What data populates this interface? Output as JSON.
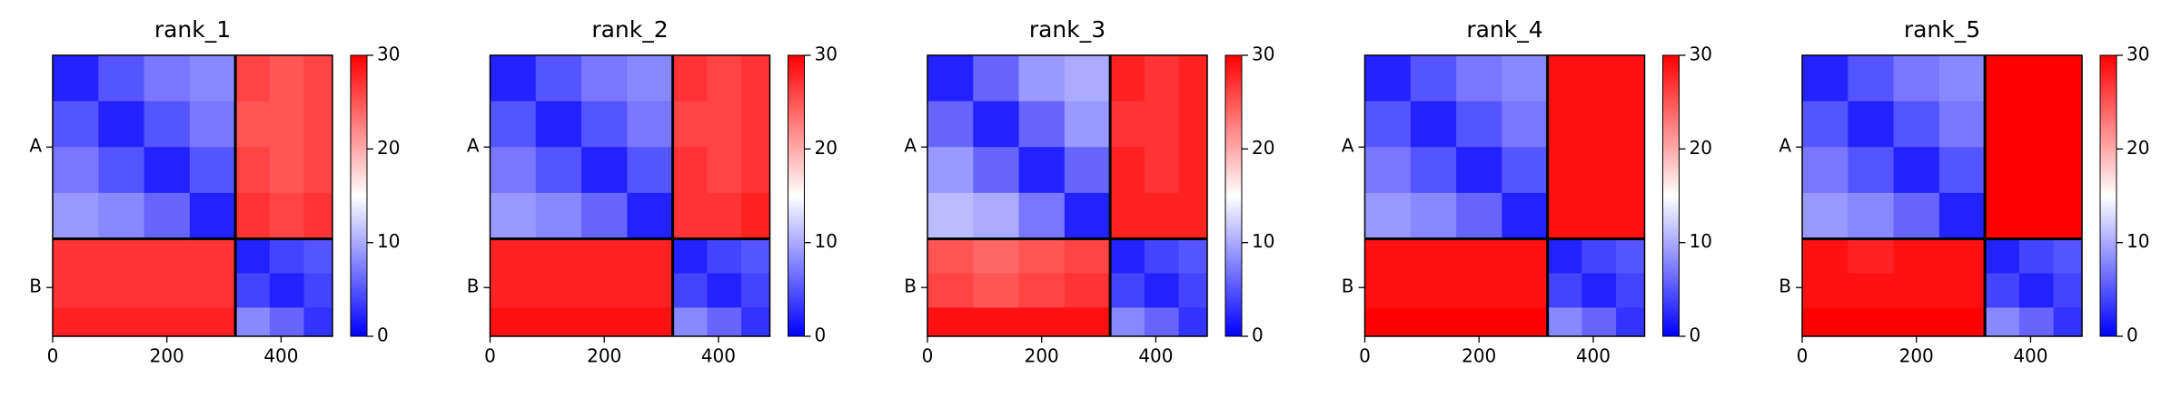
{
  "chart_data": [
    {
      "type": "heatmap",
      "title": "rank_1",
      "bins": [
        0,
        80,
        160,
        240,
        320,
        380,
        440,
        490
      ],
      "xlim": [
        0,
        490
      ],
      "ylim": [
        490,
        0
      ],
      "xticks": [
        0,
        200,
        400
      ],
      "yticks": [
        {
          "value": 160,
          "label": "A"
        },
        {
          "value": 405,
          "label": "B"
        }
      ],
      "chain_breaks": [
        320
      ],
      "z": [
        [
          2,
          5,
          7,
          8,
          26,
          25,
          26
        ],
        [
          5,
          2,
          5,
          7,
          25,
          25,
          26
        ],
        [
          7,
          5,
          2,
          5,
          26,
          25,
          26
        ],
        [
          9,
          8,
          6,
          2,
          27,
          26,
          27
        ],
        [
          27,
          27,
          27,
          27,
          2,
          4,
          5
        ],
        [
          27,
          27,
          27,
          27,
          4,
          2,
          4
        ],
        [
          28,
          28,
          28,
          28,
          8,
          6,
          3
        ]
      ],
      "colorbar": {
        "lim": [
          0,
          30
        ],
        "ticks": [
          0,
          10,
          20,
          30
        ],
        "colors": [
          "#0000ff",
          "#ffffff",
          "#ff0000"
        ]
      }
    },
    {
      "type": "heatmap",
      "title": "rank_2",
      "bins": [
        0,
        80,
        160,
        240,
        320,
        380,
        440,
        490
      ],
      "xlim": [
        0,
        490
      ],
      "ylim": [
        490,
        0
      ],
      "xticks": [
        0,
        200,
        400
      ],
      "yticks": [
        {
          "value": 160,
          "label": "A"
        },
        {
          "value": 405,
          "label": "B"
        }
      ],
      "chain_breaks": [
        320
      ],
      "z": [
        [
          2,
          5,
          7,
          8,
          27,
          26,
          27
        ],
        [
          5,
          2,
          5,
          7,
          26,
          26,
          27
        ],
        [
          7,
          5,
          2,
          5,
          27,
          26,
          27
        ],
        [
          9,
          8,
          6,
          2,
          27,
          27,
          28
        ],
        [
          28,
          28,
          28,
          28,
          2,
          4,
          5
        ],
        [
          28,
          28,
          28,
          28,
          4,
          2,
          4
        ],
        [
          29,
          29,
          29,
          29,
          8,
          6,
          3
        ]
      ],
      "colorbar": {
        "lim": [
          0,
          30
        ],
        "ticks": [
          0,
          10,
          20,
          30
        ],
        "colors": [
          "#0000ff",
          "#ffffff",
          "#ff0000"
        ]
      }
    },
    {
      "type": "heatmap",
      "title": "rank_3",
      "bins": [
        0,
        80,
        160,
        240,
        320,
        380,
        440,
        490
      ],
      "xlim": [
        0,
        490
      ],
      "ylim": [
        490,
        0
      ],
      "xticks": [
        0,
        200,
        400
      ],
      "yticks": [
        {
          "value": 160,
          "label": "A"
        },
        {
          "value": 405,
          "label": "B"
        }
      ],
      "chain_breaks": [
        320
      ],
      "z": [
        [
          2,
          6,
          9,
          10,
          28,
          27,
          28
        ],
        [
          6,
          2,
          6,
          9,
          27,
          27,
          28
        ],
        [
          9,
          6,
          2,
          6,
          28,
          27,
          28
        ],
        [
          11,
          10,
          7,
          2,
          28,
          28,
          28
        ],
        [
          25,
          24,
          25,
          26,
          2,
          4,
          5
        ],
        [
          26,
          25,
          26,
          27,
          4,
          2,
          4
        ],
        [
          29,
          29,
          29,
          29,
          8,
          6,
          3
        ]
      ],
      "colorbar": {
        "lim": [
          0,
          30
        ],
        "ticks": [
          0,
          10,
          20,
          30
        ],
        "colors": [
          "#0000ff",
          "#ffffff",
          "#ff0000"
        ]
      }
    },
    {
      "type": "heatmap",
      "title": "rank_4",
      "bins": [
        0,
        80,
        160,
        240,
        320,
        380,
        440,
        490
      ],
      "xlim": [
        0,
        490
      ],
      "ylim": [
        490,
        0
      ],
      "xticks": [
        0,
        200,
        400
      ],
      "yticks": [
        {
          "value": 160,
          "label": "A"
        },
        {
          "value": 405,
          "label": "B"
        }
      ],
      "chain_breaks": [
        320
      ],
      "z": [
        [
          2,
          5,
          7,
          8,
          29,
          29,
          29
        ],
        [
          5,
          2,
          5,
          7,
          29,
          29,
          29
        ],
        [
          7,
          5,
          2,
          5,
          29,
          29,
          29
        ],
        [
          9,
          8,
          6,
          2,
          29,
          29,
          29
        ],
        [
          29,
          29,
          29,
          29,
          2,
          4,
          5
        ],
        [
          29,
          29,
          29,
          29,
          4,
          2,
          4
        ],
        [
          30,
          30,
          30,
          30,
          8,
          6,
          3
        ]
      ],
      "colorbar": {
        "lim": [
          0,
          30
        ],
        "ticks": [
          0,
          10,
          20,
          30
        ],
        "colors": [
          "#0000ff",
          "#ffffff",
          "#ff0000"
        ]
      }
    },
    {
      "type": "heatmap",
      "title": "rank_5",
      "bins": [
        0,
        80,
        160,
        240,
        320,
        380,
        440,
        490
      ],
      "xlim": [
        0,
        490
      ],
      "ylim": [
        490,
        0
      ],
      "xticks": [
        0,
        200,
        400
      ],
      "yticks": [
        {
          "value": 160,
          "label": "A"
        },
        {
          "value": 405,
          "label": "B"
        }
      ],
      "chain_breaks": [
        320
      ],
      "z": [
        [
          2,
          5,
          7,
          8,
          30,
          30,
          30
        ],
        [
          5,
          2,
          5,
          7,
          30,
          30,
          30
        ],
        [
          7,
          5,
          2,
          5,
          30,
          30,
          30
        ],
        [
          9,
          8,
          6,
          2,
          30,
          30,
          30
        ],
        [
          29,
          28,
          29,
          29,
          2,
          4,
          5
        ],
        [
          29,
          29,
          29,
          29,
          4,
          2,
          4
        ],
        [
          30,
          30,
          30,
          30,
          8,
          6,
          3
        ]
      ],
      "colorbar": {
        "lim": [
          0,
          30
        ],
        "ticks": [
          0,
          10,
          20,
          30
        ],
        "colors": [
          "#0000ff",
          "#ffffff",
          "#ff0000"
        ]
      }
    }
  ]
}
